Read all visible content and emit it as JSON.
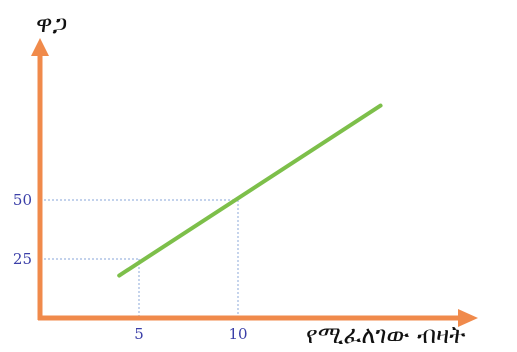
{
  "chart_data": {
    "type": "line",
    "title": "",
    "xlabel": "የሚፈለገው ብዛት",
    "ylabel": "ዋጋ",
    "xlim": [
      0,
      20
    ],
    "ylim": [
      0,
      100
    ],
    "x_ticks": [
      "5",
      "10"
    ],
    "y_ticks": [
      "25",
      "50"
    ],
    "grid": false,
    "series": [
      {
        "name": "",
        "x": [
          4,
          17.2
        ],
        "y": [
          18,
          90
        ]
      }
    ],
    "reference_points": [
      {
        "x": 5,
        "y": 25
      },
      {
        "x": 10,
        "y": 50
      }
    ]
  },
  "colors": {
    "axis": "#f08a4b",
    "line": "#7dbf4a",
    "guide": "#9fb8e0",
    "tick_text": "#3b3fa8"
  }
}
